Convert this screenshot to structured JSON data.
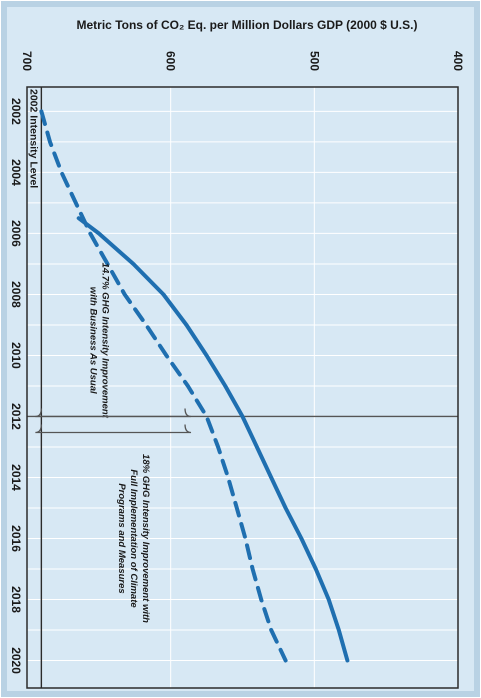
{
  "colors": {
    "panel_border": "#b9d2e4",
    "plot_background": "#d7e8f4",
    "grid": "#ffffff",
    "series": "#1f6fb0",
    "text": "#1a1a1a"
  },
  "chart_data": {
    "type": "line",
    "orientation": "rotated 90 degrees clockwise: years run top to bottom, intensity values run right to left",
    "title": "Metric Tons of CO₂ Eq. per Million Dollars GDP (2000 $ U.S.)",
    "ylabel": "Metric Tons of CO₂ Eq. per Million Dollars GDP (2000 $ U.S.)",
    "xlabel": "",
    "xlim": [
      2001.2,
      2020.9
    ],
    "ylim": [
      400,
      700
    ],
    "x_ticks": [
      "2002",
      "2004",
      "2006",
      "2008",
      "2010",
      "2012",
      "2014",
      "2016",
      "2018",
      "2020"
    ],
    "y_ticks": [
      "400",
      "500",
      "600",
      "700"
    ],
    "grid": true,
    "reference_lines": [
      {
        "label": "2002 Intensity Level",
        "value": 690,
        "axis": "y"
      },
      {
        "label": "",
        "value": 2012,
        "axis": "x"
      }
    ],
    "series": [
      {
        "name": "14.7% GHG Intensity Improvement with Business As Usual",
        "style": "solid",
        "x": [
          2005.5,
          2006,
          2007,
          2008,
          2009,
          2010,
          2011,
          2012,
          2013,
          2014,
          2015,
          2016,
          2017,
          2018,
          2019,
          2020
        ],
        "y": [
          664,
          650,
          626,
          605,
          589,
          575,
          562,
          550,
          540,
          530,
          520,
          509,
          499,
          490,
          483,
          477
        ]
      },
      {
        "name": "18% GHG Intensity Improvement with Full Implementation of Climate Programs and Measures",
        "style": "dashed",
        "x": [
          2002,
          2003,
          2004,
          2005,
          2006,
          2007,
          2008,
          2009,
          2010,
          2011,
          2012,
          2013,
          2014,
          2015,
          2016,
          2017,
          2018,
          2019,
          2020
        ],
        "y": [
          690,
          684,
          676,
          666,
          656,
          644,
          632,
          617,
          603,
          588,
          575,
          567,
          560,
          554,
          548,
          543,
          537,
          530,
          520
        ]
      }
    ],
    "annotations": [
      {
        "text_lines": [
          "14.7% GHG Intensity Improvement",
          "with Business As Usual"
        ],
        "x": 2009.5,
        "y": 650
      },
      {
        "text_lines": [
          "18% GHG Intensity Improvement with",
          "Full Implementation of Climate",
          "Programs and Measures"
        ],
        "x": 2016,
        "y": 626
      }
    ]
  }
}
